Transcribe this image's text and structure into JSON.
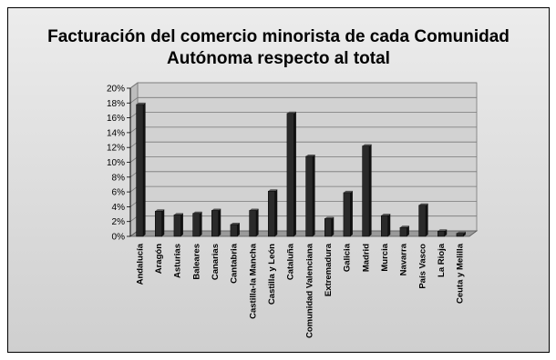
{
  "chart_data": {
    "type": "bar",
    "title_lines": [
      "Facturación del comercio minorista de cada Comunidad",
      "Autónoma respecto al total"
    ],
    "categories": [
      "Andalucía",
      "Aragón",
      "Asturias",
      "Baleares",
      "Canarias",
      "Cantabria",
      "Castilla-la Mancha",
      "Castilla y León",
      "Cataluña",
      "Comunidad Valenciana",
      "Extremadura",
      "Galicia",
      "Madrid",
      "Murcia",
      "Navarra",
      "País Vasco",
      "La Rioja",
      "Ceuta y Melilla"
    ],
    "values": [
      17.8,
      3.4,
      2.9,
      3.1,
      3.5,
      1.6,
      3.5,
      6.1,
      16.6,
      10.8,
      2.4,
      5.9,
      12.2,
      2.8,
      1.2,
      4.2,
      0.7,
      0.4
    ],
    "ylim": [
      0,
      20
    ],
    "yticks": [
      "0%",
      "2%",
      "4%",
      "6%",
      "8%",
      "10%",
      "12%",
      "14%",
      "16%",
      "18%",
      "20%"
    ],
    "grid": true,
    "legend": "none",
    "bar_color": "#2a2a2a",
    "grid_color": "#777777"
  }
}
